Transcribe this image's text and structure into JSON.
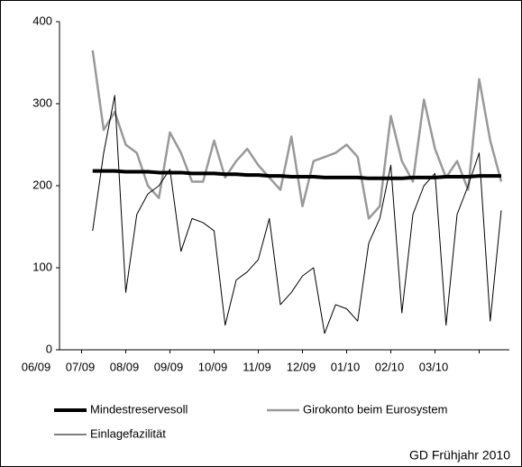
{
  "chart_data": {
    "type": "line",
    "categories": [
      "06/09",
      null,
      null,
      null,
      "07/09",
      null,
      null,
      null,
      "08/09",
      null,
      null,
      null,
      "09/09",
      null,
      null,
      null,
      "10/09",
      null,
      null,
      null,
      "11/09",
      null,
      null,
      null,
      "12/09",
      null,
      null,
      null,
      "01/10",
      null,
      null,
      null,
      "02/10",
      null,
      null,
      null,
      "03/10",
      null,
      null,
      null,
      null
    ],
    "series": [
      {
        "name": "Mindestreservesoll",
        "color": "#000000",
        "values": [
          null,
          null,
          null,
          218,
          218,
          218,
          217,
          217,
          217,
          216,
          216,
          216,
          215,
          215,
          215,
          214,
          214,
          213,
          213,
          212,
          212,
          211,
          211,
          211,
          210,
          210,
          210,
          210,
          209,
          209,
          209,
          209,
          210,
          210,
          210,
          211,
          211,
          211,
          212,
          212,
          212
        ]
      },
      {
        "name": "Girokonto beim Eurosystem",
        "color": "#999999",
        "values": [
          null,
          null,
          null,
          365,
          268,
          290,
          250,
          240,
          200,
          185,
          265,
          240,
          205,
          205,
          255,
          210,
          230,
          245,
          225,
          210,
          195,
          260,
          175,
          230,
          235,
          240,
          250,
          235,
          160,
          175,
          285,
          230,
          205,
          305,
          245,
          210,
          230,
          195,
          330,
          255,
          205
        ]
      },
      {
        "name": "Einlagefazilität",
        "color": "#000000",
        "values": [
          null,
          null,
          null,
          145,
          240,
          310,
          70,
          165,
          190,
          200,
          220,
          120,
          160,
          155,
          145,
          30,
          85,
          95,
          110,
          160,
          55,
          70,
          90,
          100,
          20,
          55,
          50,
          35,
          130,
          160,
          225,
          45,
          165,
          200,
          215,
          30,
          165,
          200,
          240,
          35,
          170
        ]
      }
    ],
    "ylim": [
      0,
      400
    ],
    "yticks": [
      0,
      100,
      200,
      300,
      400
    ],
    "source": "GD Frühjahr 2010"
  }
}
